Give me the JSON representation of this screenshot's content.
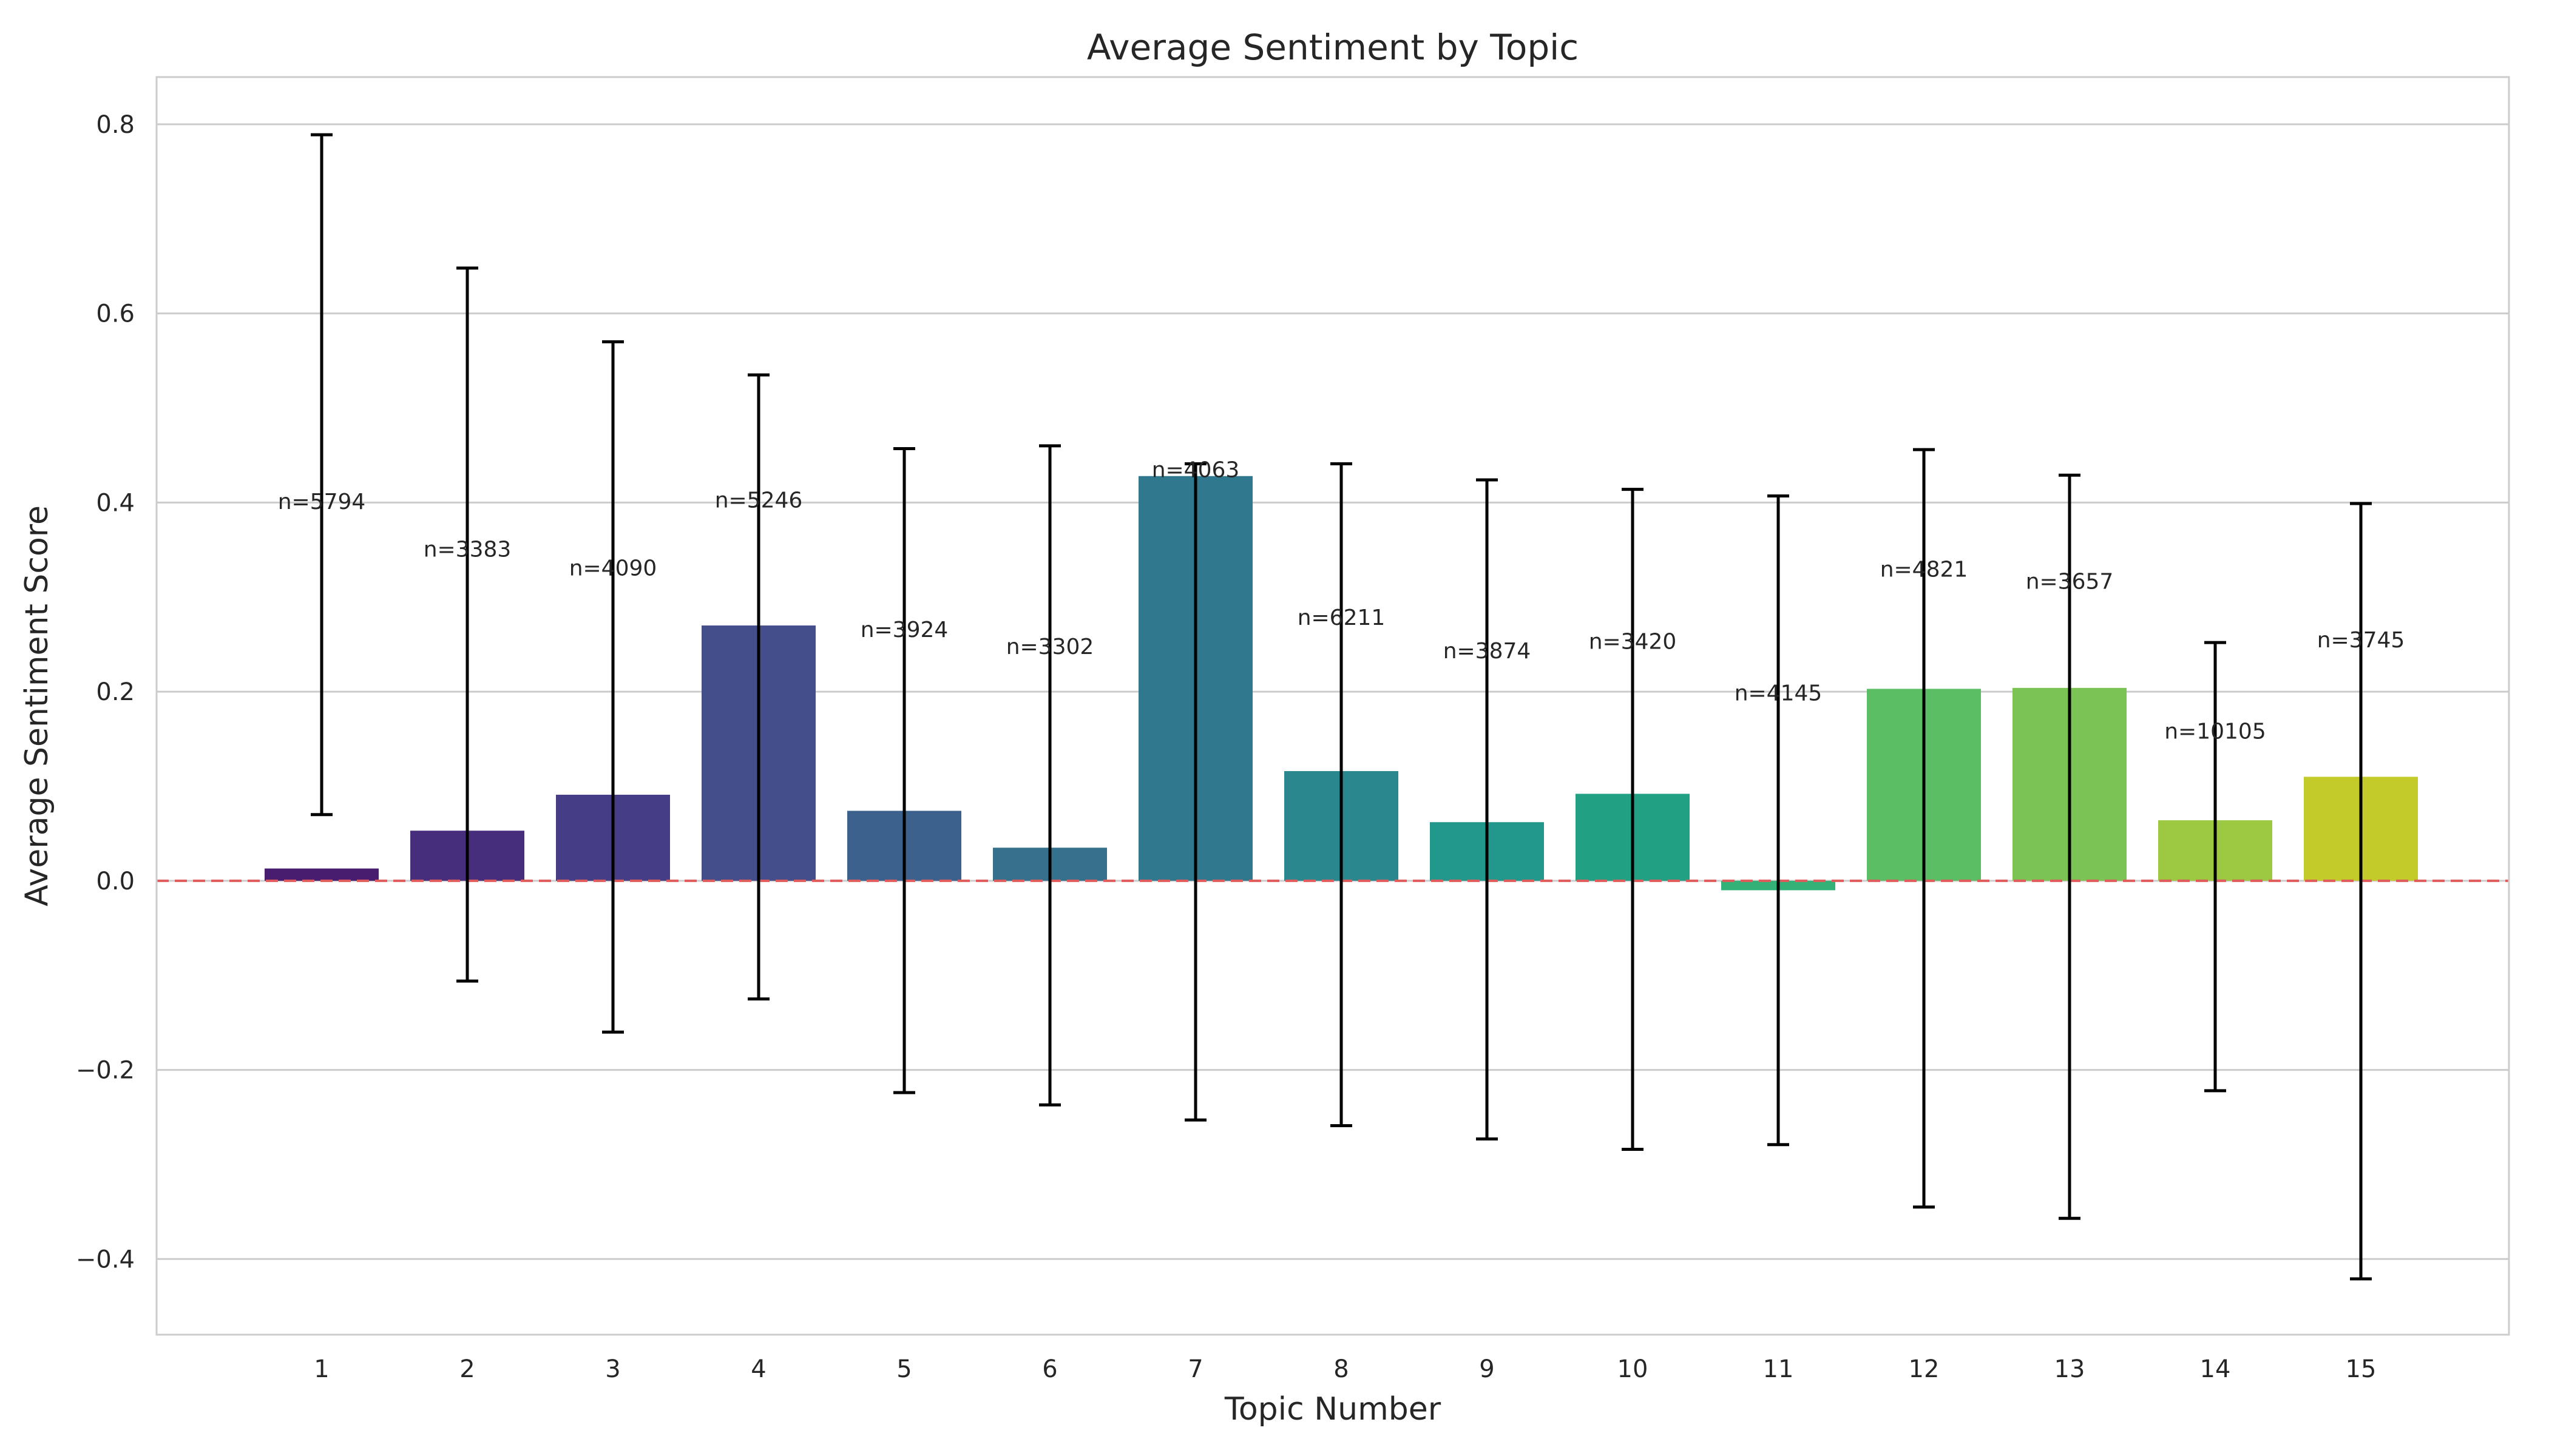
{
  "chart_data": {
    "type": "bar",
    "title": "Average Sentiment by Topic",
    "xlabel": "Topic Number",
    "ylabel": "Average Sentiment Score",
    "categories": [
      "1",
      "2",
      "3",
      "4",
      "5",
      "6",
      "7",
      "8",
      "9",
      "10",
      "11",
      "12",
      "13",
      "14",
      "15"
    ],
    "values": [
      0.013,
      0.053,
      0.091,
      0.27,
      0.074,
      0.035,
      0.428,
      0.116,
      0.062,
      0.092,
      -0.01,
      0.203,
      0.204,
      0.064,
      0.11
    ],
    "error_low": [
      0.07,
      -0.106,
      -0.16,
      -0.125,
      -0.224,
      -0.237,
      -0.253,
      -0.259,
      -0.273,
      -0.284,
      -0.279,
      -0.345,
      -0.357,
      -0.222,
      -0.421
    ],
    "error_high": [
      0.789,
      0.648,
      0.57,
      0.535,
      0.457,
      0.46,
      0.441,
      0.441,
      0.424,
      0.414,
      0.407,
      0.456,
      0.429,
      0.252,
      0.399
    ],
    "counts": [
      "n=5794",
      "n=3383",
      "n=4090",
      "n=5246",
      "n=3924",
      "n=3302",
      "n=4063",
      "n=6211",
      "n=3874",
      "n=3420",
      "n=4145",
      "n=4821",
      "n=3657",
      "n=10105",
      "n=3745"
    ],
    "ylim": [
      -0.48,
      0.85
    ],
    "yticks": [
      -0.4,
      -0.2,
      0.0,
      0.2,
      0.4,
      0.6,
      0.8
    ],
    "ytick_labels": [
      "−0.4",
      "−0.2",
      "0.0",
      "0.2",
      "0.4",
      "0.6",
      "0.8"
    ],
    "reference_line": 0.0,
    "grid": true,
    "colors": {
      "bars": [
        "#481d6f",
        "#472e7c",
        "#453e86",
        "#434e8b",
        "#3c618d",
        "#35718d",
        "#30788e",
        "#2a878e",
        "#22978b",
        "#22a083",
        "#32b276",
        "#5bbe64",
        "#7cc356",
        "#9cc842",
        "#c3cb2a"
      ],
      "reference_line": "#e05b5b",
      "error_bars": "#000000",
      "grid": "#cccccc",
      "frame": "#cccccc"
    }
  }
}
